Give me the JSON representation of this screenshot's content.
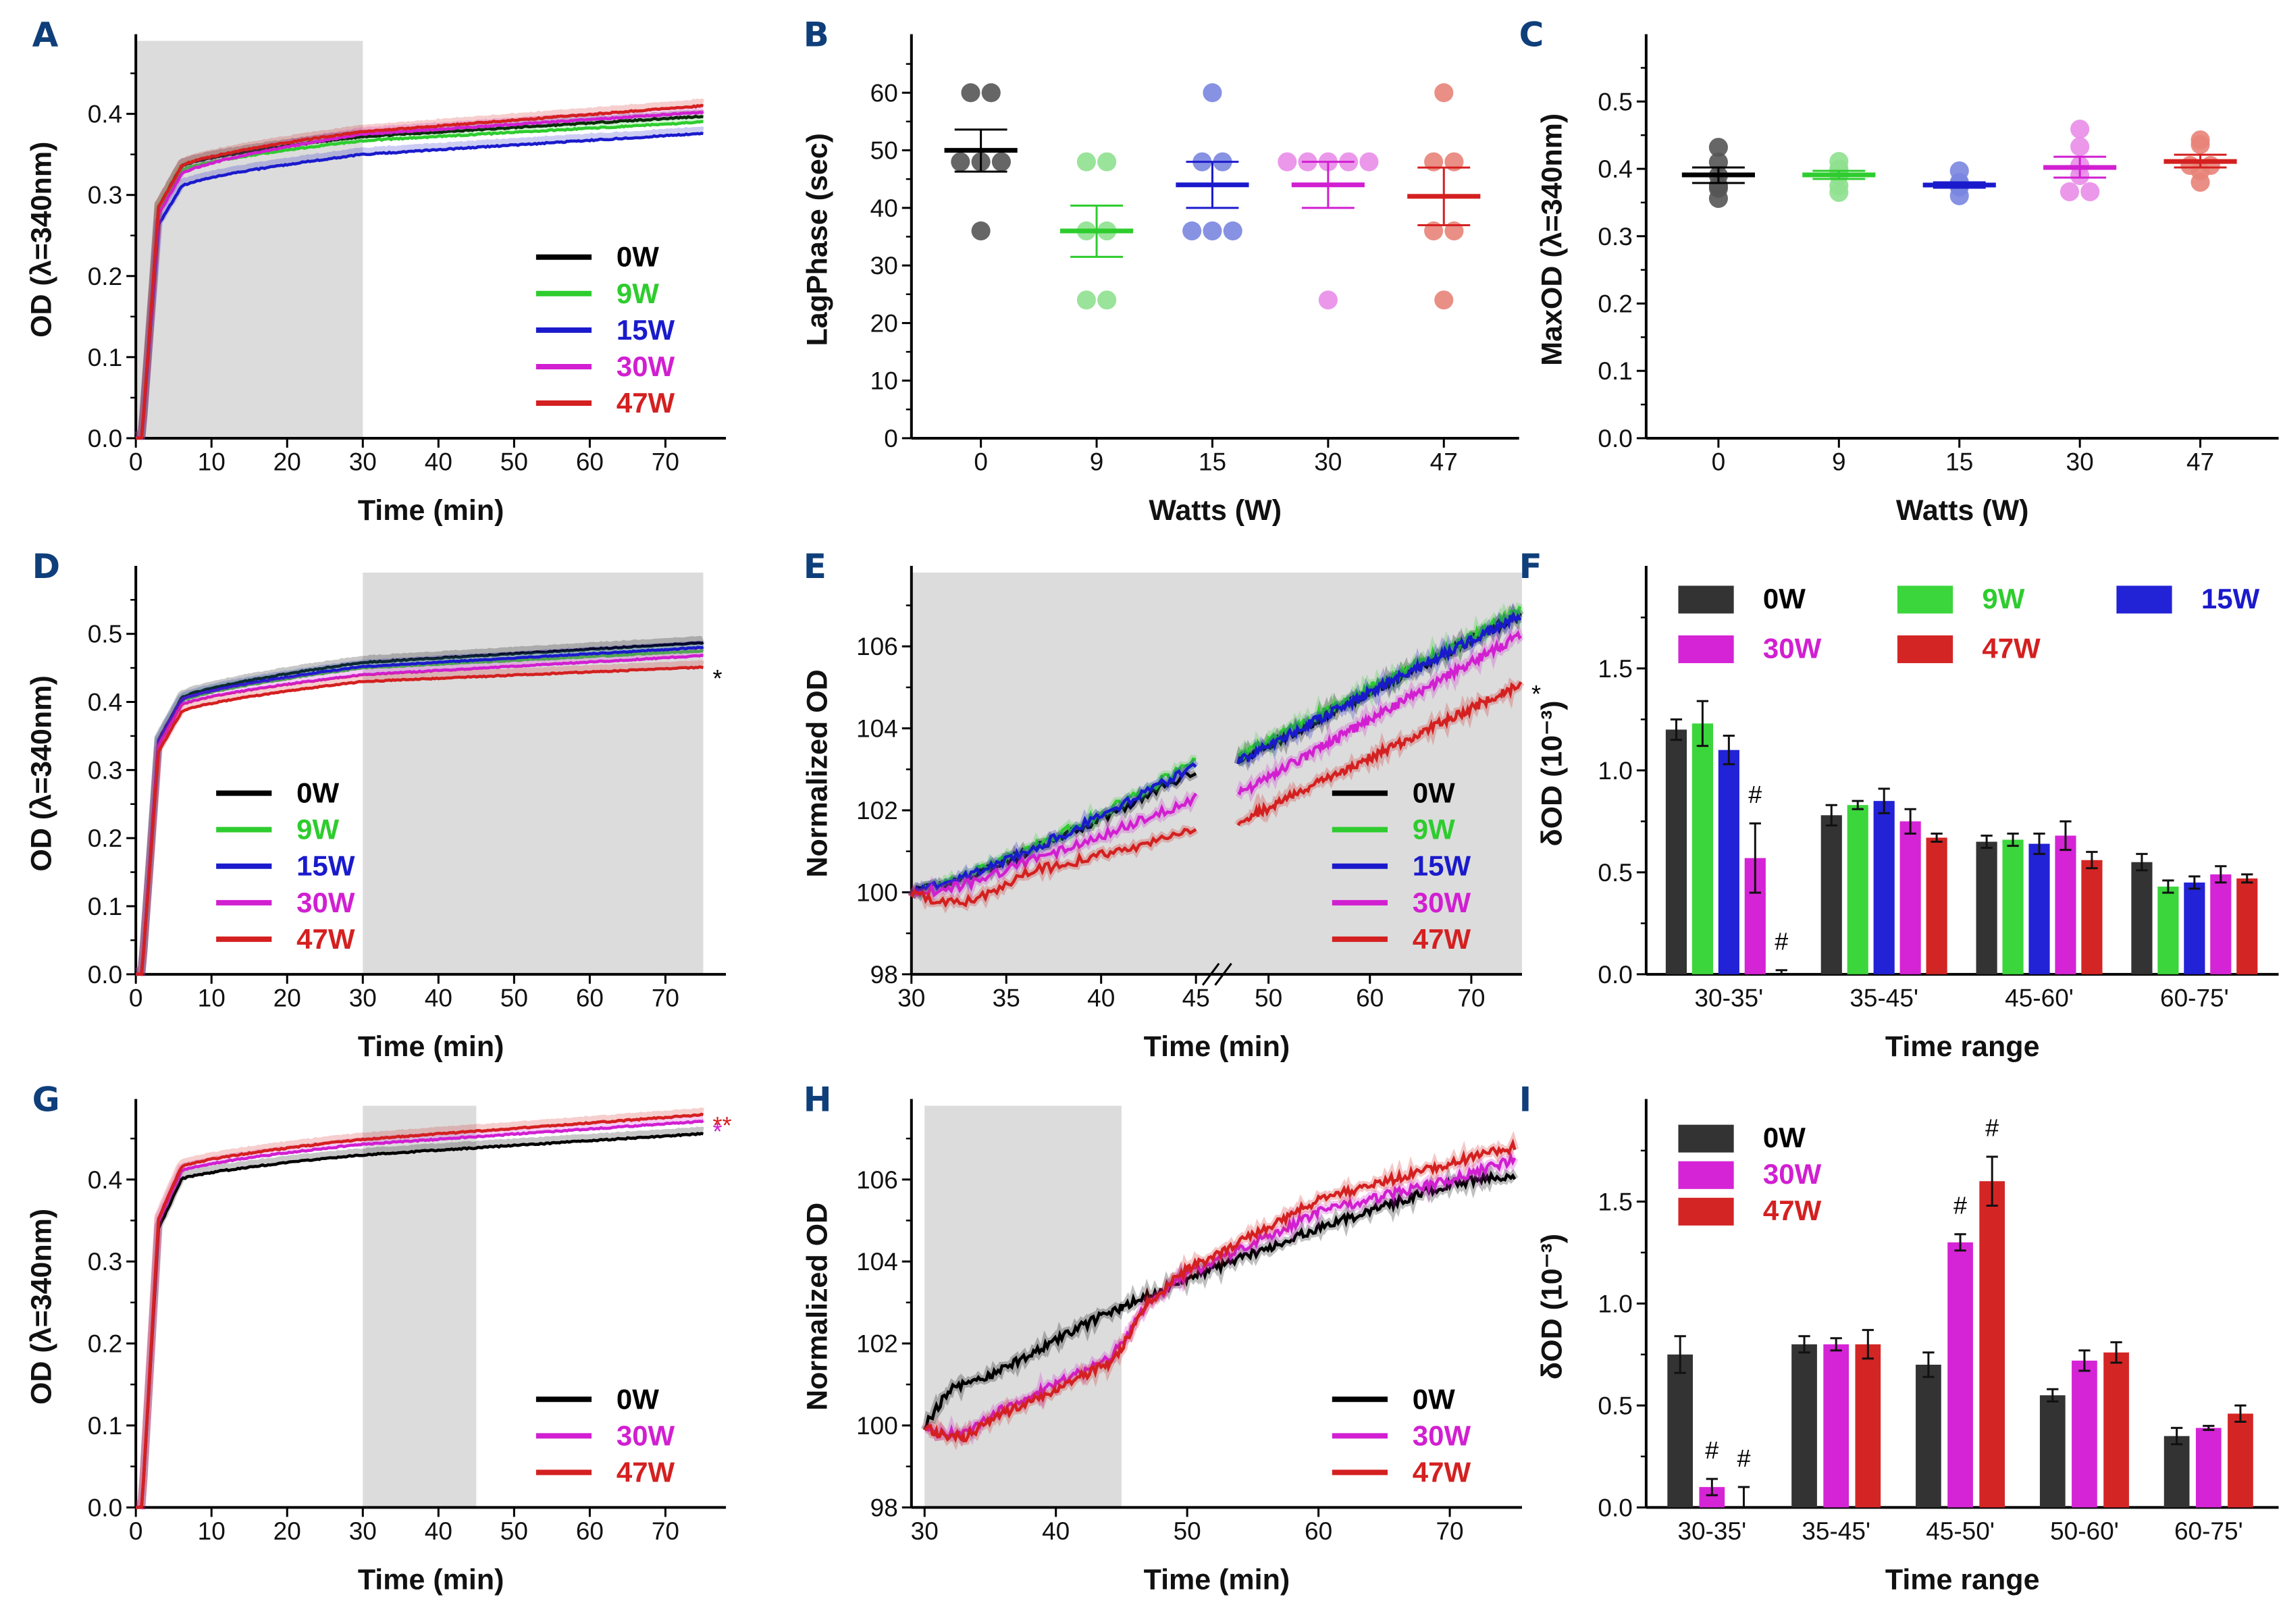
{
  "figure": {
    "panel_labels": [
      "A",
      "B",
      "C",
      "D",
      "E",
      "F",
      "G",
      "H",
      "I"
    ],
    "colors": {
      "0W": "#000000",
      "9W": "#2ecc2e",
      "15W": "#1a1acc",
      "30W": "#d11fd1",
      "47W": "#d42020"
    },
    "point_colors": {
      "0W": "#555555",
      "9W": "#8fe08f",
      "15W": "#7a86e0",
      "30W": "#e98de9",
      "47W": "#e88378"
    },
    "bar_colors": {
      "0W": "#333333",
      "9W": "#3bd63b",
      "15W": "#2222d6",
      "30W": "#d524d5",
      "47W": "#d42525"
    },
    "shade_color": "#dcdcdc"
  },
  "chart_data": [
    {
      "panel": "A",
      "type": "line",
      "xlabel": "Time (min)",
      "ylabel": "OD (λ=340nm)",
      "xlim": [
        0,
        78
      ],
      "ylim": [
        0,
        0.49
      ],
      "xticks": [
        0,
        10,
        20,
        30,
        40,
        50,
        60,
        70
      ],
      "yticks": [
        "0.0",
        "0.1",
        "0.2",
        "0.3",
        "0.4"
      ],
      "shaded_range": [
        0,
        30
      ],
      "legend": [
        "0W",
        "9W",
        "15W",
        "30W",
        "47W"
      ],
      "legend_position": "bottom-right",
      "series": [
        {
          "name": "0W",
          "plateau": [
            0.335,
            0.372,
            0.397
          ],
          "t": [
            2,
            5,
            30,
            75
          ]
        },
        {
          "name": "9W",
          "plateau": [
            0.33,
            0.367,
            0.39
          ]
        },
        {
          "name": "15W",
          "plateau": [
            0.31,
            0.35,
            0.376
          ]
        },
        {
          "name": "30W",
          "plateau": [
            0.325,
            0.375,
            0.402
          ]
        },
        {
          "name": "47W",
          "plateau": [
            0.335,
            0.378,
            0.41
          ]
        }
      ],
      "annotations": []
    },
    {
      "panel": "B",
      "type": "scatter",
      "xlabel": "Watts (W)",
      "ylabel": "LagPhase (sec)",
      "categories": [
        "0",
        "9",
        "15",
        "30",
        "47"
      ],
      "ylim": [
        0,
        69
      ],
      "yticks": [
        "0",
        "10",
        "20",
        "30",
        "40",
        "50",
        "60"
      ],
      "groups": [
        {
          "name": "0W",
          "points": [
            60,
            60,
            48,
            48,
            48,
            36
          ],
          "mean": 50,
          "err": [
            46.3,
            53.6
          ]
        },
        {
          "name": "9W",
          "points": [
            48,
            48,
            36,
            36,
            24,
            24
          ],
          "mean": 36,
          "err": [
            31.5,
            40.4
          ]
        },
        {
          "name": "15W",
          "points": [
            60,
            48,
            48,
            36,
            36,
            36
          ],
          "mean": 44,
          "err": [
            40,
            48
          ]
        },
        {
          "name": "30W",
          "points": [
            48,
            48,
            48,
            48,
            48,
            24
          ],
          "mean": 44,
          "err": [
            40,
            48
          ]
        },
        {
          "name": "47W",
          "points": [
            60,
            48,
            48,
            36,
            36,
            24
          ],
          "mean": 42,
          "err": [
            37,
            47
          ]
        }
      ]
    },
    {
      "panel": "C",
      "type": "scatter",
      "xlabel": "Watts (W)",
      "ylabel": "MaxOD (λ=340nm)",
      "categories": [
        "0",
        "9",
        "15",
        "30",
        "47"
      ],
      "ylim": [
        0,
        0.59
      ],
      "yticks": [
        "0.0",
        "0.1",
        "0.2",
        "0.3",
        "0.4",
        "0.5"
      ],
      "groups": [
        {
          "name": "0W",
          "points": [
            0.432,
            0.39,
            0.375,
            0.41,
            0.371,
            0.356
          ],
          "mean": 0.391,
          "err": [
            0.379,
            0.402
          ]
        },
        {
          "name": "9W",
          "points": [
            0.39,
            0.4,
            0.411,
            0.397,
            0.365,
            0.375
          ],
          "mean": 0.391,
          "err": [
            0.385,
            0.397
          ]
        },
        {
          "name": "15W",
          "points": [
            0.373,
            0.38,
            0.376,
            0.378,
            0.397,
            0.36
          ],
          "mean": 0.376,
          "err": [
            0.372,
            0.38
          ]
        },
        {
          "name": "30W",
          "points": [
            0.433,
            0.459,
            0.39,
            0.366,
            0.366,
            0.405
          ],
          "mean": 0.402,
          "err": [
            0.387,
            0.418
          ]
        },
        {
          "name": "47W",
          "points": [
            0.405,
            0.436,
            0.405,
            0.443,
            0.38,
            0.397
          ],
          "mean": 0.411,
          "err": [
            0.402,
            0.421
          ]
        }
      ]
    },
    {
      "panel": "D",
      "type": "line",
      "xlabel": "Time (min)",
      "ylabel": "OD (λ=340nm)",
      "xlim": [
        0,
        78
      ],
      "ylim": [
        0,
        0.59
      ],
      "xticks": [
        0,
        10,
        20,
        30,
        40,
        50,
        60,
        70
      ],
      "yticks": [
        "0.0",
        "0.1",
        "0.2",
        "0.3",
        "0.4",
        "0.5"
      ],
      "shaded_range": [
        30,
        75
      ],
      "legend": [
        "0W",
        "9W",
        "15W",
        "30W",
        "47W"
      ],
      "legend_position": "bottom-left",
      "series": [
        {
          "name": "0W",
          "plateau": [
            0.405,
            0.458,
            0.487
          ]
        },
        {
          "name": "9W",
          "plateau": [
            0.4,
            0.45,
            0.475
          ]
        },
        {
          "name": "15W",
          "plateau": [
            0.402,
            0.452,
            0.48
          ]
        },
        {
          "name": "30W",
          "plateau": [
            0.395,
            0.44,
            0.468
          ]
        },
        {
          "name": "47W",
          "plateau": [
            0.385,
            0.43,
            0.451
          ]
        }
      ],
      "annotations": [
        {
          "text": "*",
          "series": "47W"
        }
      ]
    },
    {
      "panel": "E",
      "type": "line",
      "xlabel": "Time (min)",
      "ylabel": "Normalized OD",
      "xlim": [
        30,
        75
      ],
      "ylim": [
        98,
        107.8
      ],
      "axis_break": [
        45,
        47
      ],
      "xticks": [
        30,
        35,
        40,
        45,
        50,
        60,
        70
      ],
      "yticks": [
        "98",
        "100",
        "102",
        "104",
        "106"
      ],
      "shaded_range": [
        30,
        75
      ],
      "legend": [
        "0W",
        "9W",
        "15W",
        "30W",
        "47W"
      ],
      "legend_position": "bottom-right",
      "series": [
        {
          "name": "0W",
          "y30": 100,
          "y45": 103.0,
          "y47": 103.2,
          "y75": 106.8,
          "dip": 0
        },
        {
          "name": "9W",
          "y30": 100,
          "y45": 103.2,
          "y47": 103.3,
          "y75": 106.9,
          "dip": 0
        },
        {
          "name": "15W",
          "y30": 100,
          "y45": 103.1,
          "y47": 103.2,
          "y75": 106.8,
          "dip": 0
        },
        {
          "name": "30W",
          "y30": 100,
          "y45": 102.3,
          "y47": 102.4,
          "y75": 106.3,
          "dip": 0.1
        },
        {
          "name": "47W",
          "y30": 100,
          "y45": 101.5,
          "y47": 101.7,
          "y75": 105.1,
          "dip": 0.4
        }
      ],
      "annotations": [
        {
          "text": "*",
          "series": "47W"
        }
      ]
    },
    {
      "panel": "F",
      "type": "bar",
      "xlabel": "Time range",
      "ylabel": "δOD (10⁻³)",
      "categories": [
        "30-35'",
        "35-45'",
        "45-60'",
        "60-75'"
      ],
      "ylim": [
        0,
        1.97
      ],
      "yticks": [
        "0.0",
        "0.5",
        "1.0",
        "1.5"
      ],
      "legend_position": "top",
      "series": [
        {
          "name": "0W",
          "values": [
            1.2,
            0.78,
            0.65,
            0.55
          ],
          "errors": [
            0.05,
            0.05,
            0.03,
            0.04
          ]
        },
        {
          "name": "9W",
          "values": [
            1.23,
            0.83,
            0.66,
            0.43
          ],
          "errors": [
            0.11,
            0.02,
            0.03,
            0.03
          ]
        },
        {
          "name": "15W",
          "values": [
            1.1,
            0.85,
            0.64,
            0.45
          ],
          "errors": [
            0.07,
            0.06,
            0.05,
            0.03
          ]
        },
        {
          "name": "30W",
          "values": [
            0.57,
            0.75,
            0.68,
            0.49
          ],
          "errors": [
            0.17,
            0.06,
            0.07,
            0.04
          ]
        },
        {
          "name": "47W",
          "values": [
            0.0,
            0.67,
            0.56,
            0.47
          ],
          "errors": [
            0.02,
            0.02,
            0.04,
            0.02
          ]
        }
      ],
      "annotations": [
        {
          "text": "#",
          "category": "30-35'",
          "series": "30W"
        },
        {
          "text": "#",
          "category": "30-35'",
          "series": "47W"
        }
      ]
    },
    {
      "panel": "G",
      "type": "line",
      "xlabel": "Time (min)",
      "ylabel": "OD (λ=340nm)",
      "xlim": [
        0,
        78
      ],
      "ylim": [
        0,
        0.49
      ],
      "xticks": [
        0,
        10,
        20,
        30,
        40,
        50,
        60,
        70
      ],
      "yticks": [
        "0.0",
        "0.1",
        "0.2",
        "0.3",
        "0.4"
      ],
      "shaded_range": [
        30,
        45
      ],
      "legend": [
        "0W",
        "30W",
        "47W"
      ],
      "legend_position": "bottom-right",
      "series": [
        {
          "name": "0W",
          "plateau": [
            0.4,
            0.43,
            0.456
          ]
        },
        {
          "name": "30W",
          "plateau": [
            0.41,
            0.443,
            0.471
          ]
        },
        {
          "name": "47W",
          "plateau": [
            0.415,
            0.449,
            0.479
          ]
        }
      ],
      "annotations": [
        {
          "text": "**",
          "series": "47W"
        },
        {
          "text": "*",
          "series": "30W"
        }
      ]
    },
    {
      "panel": "H",
      "type": "line",
      "xlabel": "Time (min)",
      "ylabel": "Normalized OD",
      "xlim": [
        29,
        75.5
      ],
      "ylim": [
        98,
        107.8
      ],
      "xticks": [
        30,
        40,
        50,
        60,
        70
      ],
      "yticks": [
        "98",
        "100",
        "102",
        "104",
        "106"
      ],
      "shaded_range": [
        30,
        45
      ],
      "legend": [
        "0W",
        "30W",
        "47W"
      ],
      "legend_position": "bottom-right",
      "series": [
        {
          "name": "0W",
          "pts": [
            [
              30,
              100
            ],
            [
              32,
              100.9
            ],
            [
              35,
              101.2
            ],
            [
              40,
              102.1
            ],
            [
              45,
              102.9
            ],
            [
              48,
              103.3
            ],
            [
              50,
              103.6
            ],
            [
              60,
              104.8
            ],
            [
              70,
              105.9
            ],
            [
              75,
              106.1
            ]
          ]
        },
        {
          "name": "30W",
          "pts": [
            [
              30,
              100
            ],
            [
              31,
              99.8
            ],
            [
              33,
              99.8
            ],
            [
              36,
              100.4
            ],
            [
              40,
              101.0
            ],
            [
              44,
              101.6
            ],
            [
              45,
              102.0
            ],
            [
              47,
              103.0
            ],
            [
              50,
              103.7
            ],
            [
              60,
              105.2
            ],
            [
              70,
              106.0
            ],
            [
              75,
              106.5
            ]
          ]
        },
        {
          "name": "47W",
          "pts": [
            [
              30,
              100
            ],
            [
              31,
              99.8
            ],
            [
              33,
              99.7
            ],
            [
              36,
              100.3
            ],
            [
              40,
              100.9
            ],
            [
              44,
              101.5
            ],
            [
              45,
              101.9
            ],
            [
              47,
              103.0
            ],
            [
              50,
              103.8
            ],
            [
              60,
              105.5
            ],
            [
              70,
              106.4
            ],
            [
              75,
              106.8
            ]
          ]
        }
      ],
      "annotations": []
    },
    {
      "panel": "I",
      "type": "bar",
      "xlabel": "Time range",
      "ylabel": "δOD (10⁻³)",
      "categories": [
        "30-35'",
        "35-45'",
        "45-50'",
        "50-60'",
        "60-75'"
      ],
      "ylim": [
        0,
        1.97
      ],
      "yticks": [
        "0.0",
        "0.5",
        "1.0",
        "1.5"
      ],
      "legend_position": "top-left",
      "series": [
        {
          "name": "0W",
          "values": [
            0.75,
            0.8,
            0.7,
            0.55,
            0.35
          ],
          "errors": [
            0.09,
            0.04,
            0.06,
            0.03,
            0.04
          ]
        },
        {
          "name": "30W",
          "values": [
            0.1,
            0.8,
            1.3,
            0.72,
            0.39
          ],
          "errors": [
            0.04,
            0.03,
            0.04,
            0.05,
            0.01
          ]
        },
        {
          "name": "47W",
          "values": [
            0.0,
            0.8,
            1.6,
            0.76,
            0.46
          ],
          "errors": [
            0.1,
            0.07,
            0.12,
            0.05,
            0.04
          ]
        }
      ],
      "annotations": [
        {
          "text": "#",
          "category": "30-35'",
          "series": "30W"
        },
        {
          "text": "#",
          "category": "30-35'",
          "series": "47W"
        },
        {
          "text": "#",
          "category": "45-50'",
          "series": "30W"
        },
        {
          "text": "#",
          "category": "45-50'",
          "series": "47W"
        }
      ]
    }
  ]
}
